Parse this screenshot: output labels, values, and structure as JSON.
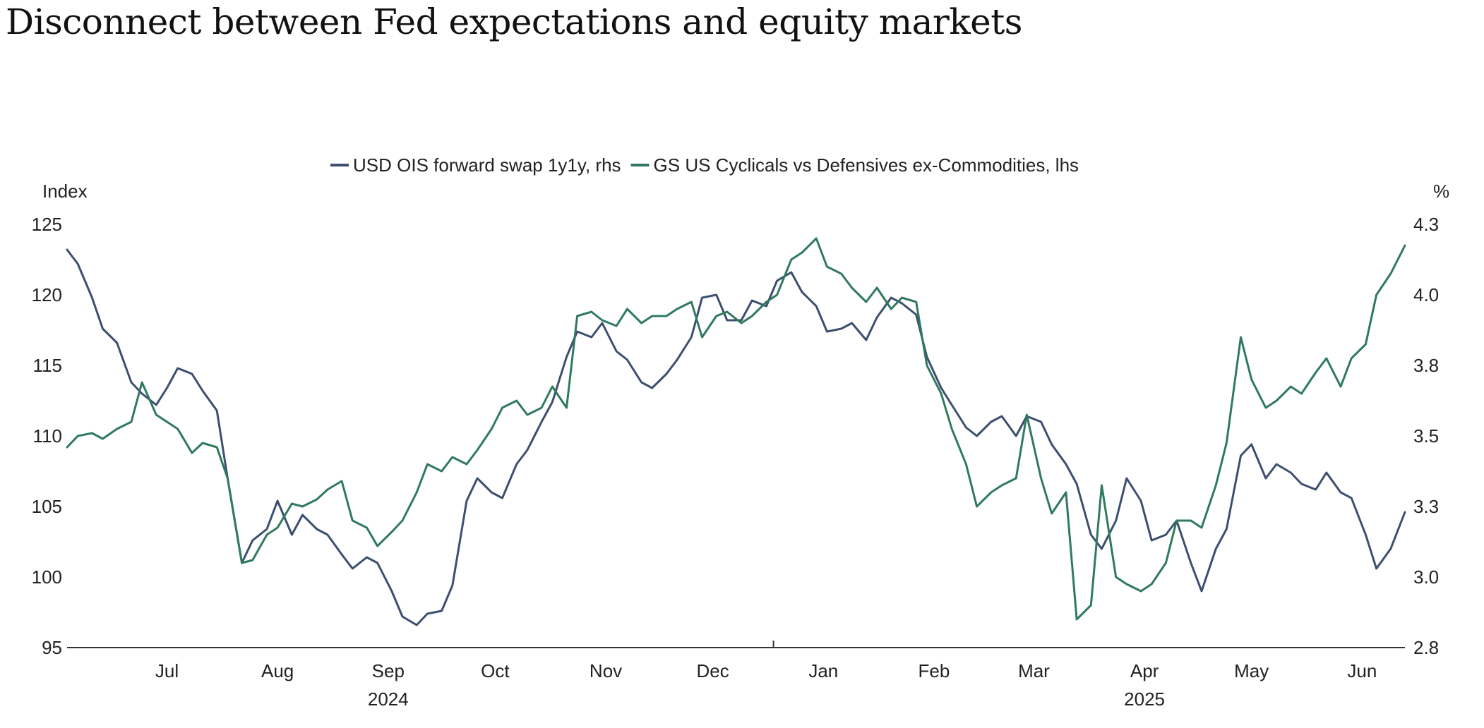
{
  "title": "Disconnect between Fed expectations and equity markets",
  "chart_data": {
    "type": "line",
    "title": "Disconnect between Fed expectations and equity markets",
    "left_axis": {
      "label": "Index",
      "ticks": [
        95,
        100,
        105,
        110,
        115,
        120,
        125
      ],
      "range": [
        95,
        125
      ]
    },
    "right_axis": {
      "label": "%",
      "ticks": [
        "2.8",
        "3.0",
        "3.3",
        "3.5",
        "3.8",
        "4.0",
        "4.3"
      ],
      "range": [
        2.8,
        4.3
      ]
    },
    "x_axis": {
      "months": [
        "Jul",
        "Aug",
        "Sep",
        "Oct",
        "Nov",
        "Dec",
        "Jan",
        "Feb",
        "Mar",
        "Apr",
        "May",
        "Jun"
      ],
      "years": [
        {
          "label": "2024",
          "under": "Sep"
        },
        {
          "label": "2025",
          "under": "Apr"
        }
      ],
      "range": [
        "2024-06-17",
        "2025-06-27"
      ]
    },
    "legend_position": "top-center",
    "grid": false,
    "series": [
      {
        "name": "USD OIS forward swap 1y1y, rhs",
        "axis": "right",
        "color": "#3d4f6f",
        "points": [
          [
            "2024-06-17",
            4.21
          ],
          [
            "2024-06-20",
            4.16
          ],
          [
            "2024-06-24",
            4.04
          ],
          [
            "2024-06-27",
            3.93
          ],
          [
            "2024-07-01",
            3.88
          ],
          [
            "2024-07-05",
            3.74
          ],
          [
            "2024-07-08",
            3.7
          ],
          [
            "2024-07-12",
            3.66
          ],
          [
            "2024-07-15",
            3.72
          ],
          [
            "2024-07-18",
            3.79
          ],
          [
            "2024-07-22",
            3.77
          ],
          [
            "2024-07-25",
            3.71
          ],
          [
            "2024-07-29",
            3.64
          ],
          [
            "2024-08-01",
            3.4
          ],
          [
            "2024-08-05",
            3.1
          ],
          [
            "2024-08-08",
            3.18
          ],
          [
            "2024-08-12",
            3.22
          ],
          [
            "2024-08-15",
            3.32
          ],
          [
            "2024-08-19",
            3.2
          ],
          [
            "2024-08-22",
            3.27
          ],
          [
            "2024-08-26",
            3.22
          ],
          [
            "2024-08-29",
            3.2
          ],
          [
            "2024-09-02",
            3.13
          ],
          [
            "2024-09-05",
            3.08
          ],
          [
            "2024-09-09",
            3.12
          ],
          [
            "2024-09-12",
            3.1
          ],
          [
            "2024-09-16",
            3.0
          ],
          [
            "2024-09-19",
            2.91
          ],
          [
            "2024-09-23",
            2.88
          ],
          [
            "2024-09-26",
            2.92
          ],
          [
            "2024-09-30",
            2.93
          ],
          [
            "2024-10-03",
            3.02
          ],
          [
            "2024-10-07",
            3.32
          ],
          [
            "2024-10-10",
            3.4
          ],
          [
            "2024-10-14",
            3.35
          ],
          [
            "2024-10-17",
            3.33
          ],
          [
            "2024-10-21",
            3.45
          ],
          [
            "2024-10-24",
            3.5
          ],
          [
            "2024-10-28",
            3.6
          ],
          [
            "2024-10-31",
            3.67
          ],
          [
            "2024-11-04",
            3.83
          ],
          [
            "2024-11-07",
            3.92
          ],
          [
            "2024-11-11",
            3.9
          ],
          [
            "2024-11-14",
            3.95
          ],
          [
            "2024-11-18",
            3.85
          ],
          [
            "2024-11-21",
            3.82
          ],
          [
            "2024-11-25",
            3.74
          ],
          [
            "2024-11-28",
            3.72
          ],
          [
            "2024-12-02",
            3.77
          ],
          [
            "2024-12-05",
            3.82
          ],
          [
            "2024-12-09",
            3.9
          ],
          [
            "2024-12-12",
            4.04
          ],
          [
            "2024-12-16",
            4.05
          ],
          [
            "2024-12-19",
            3.96
          ],
          [
            "2024-12-23",
            3.96
          ],
          [
            "2024-12-26",
            4.03
          ],
          [
            "2024-12-30",
            4.01
          ],
          [
            "2025-01-02",
            4.1
          ],
          [
            "2025-01-06",
            4.13
          ],
          [
            "2025-01-09",
            4.06
          ],
          [
            "2025-01-13",
            4.01
          ],
          [
            "2025-01-16",
            3.92
          ],
          [
            "2025-01-20",
            3.93
          ],
          [
            "2025-01-23",
            3.95
          ],
          [
            "2025-01-27",
            3.89
          ],
          [
            "2025-01-30",
            3.97
          ],
          [
            "2025-02-03",
            4.04
          ],
          [
            "2025-02-06",
            4.02
          ],
          [
            "2025-02-10",
            3.98
          ],
          [
            "2025-02-13",
            3.83
          ],
          [
            "2025-02-17",
            3.72
          ],
          [
            "2025-02-20",
            3.66
          ],
          [
            "2025-02-24",
            3.58
          ],
          [
            "2025-02-27",
            3.55
          ],
          [
            "2025-03-03",
            3.6
          ],
          [
            "2025-03-06",
            3.62
          ],
          [
            "2025-03-10",
            3.55
          ],
          [
            "2025-03-13",
            3.62
          ],
          [
            "2025-03-17",
            3.6
          ],
          [
            "2025-03-20",
            3.52
          ],
          [
            "2025-03-24",
            3.45
          ],
          [
            "2025-03-27",
            3.38
          ],
          [
            "2025-03-31",
            3.2
          ],
          [
            "2025-04-03",
            3.15
          ],
          [
            "2025-04-07",
            3.25
          ],
          [
            "2025-04-10",
            3.4
          ],
          [
            "2025-04-14",
            3.32
          ],
          [
            "2025-04-17",
            3.18
          ],
          [
            "2025-04-21",
            3.2
          ],
          [
            "2025-04-24",
            3.25
          ],
          [
            "2025-04-28",
            3.1
          ],
          [
            "2025-05-01",
            3.0
          ],
          [
            "2025-05-05",
            3.15
          ],
          [
            "2025-05-08",
            3.22
          ],
          [
            "2025-05-12",
            3.48
          ],
          [
            "2025-05-15",
            3.52
          ],
          [
            "2025-05-19",
            3.4
          ],
          [
            "2025-05-22",
            3.45
          ],
          [
            "2025-05-26",
            3.42
          ],
          [
            "2025-05-29",
            3.38
          ],
          [
            "2025-06-02",
            3.36
          ],
          [
            "2025-06-05",
            3.42
          ],
          [
            "2025-06-09",
            3.35
          ],
          [
            "2025-06-12",
            3.33
          ],
          [
            "2025-06-16",
            3.2
          ],
          [
            "2025-06-19",
            3.08
          ],
          [
            "2025-06-23",
            3.15
          ],
          [
            "2025-06-27",
            3.28
          ]
        ]
      },
      {
        "name": "GS US Cyclicals vs Defensives ex-Commodities, lhs",
        "axis": "left",
        "color": "#2f7a5f",
        "points": [
          [
            "2024-06-17",
            109.2
          ],
          [
            "2024-06-20",
            110.0
          ],
          [
            "2024-06-24",
            110.2
          ],
          [
            "2024-06-27",
            109.8
          ],
          [
            "2024-07-01",
            110.5
          ],
          [
            "2024-07-05",
            111.0
          ],
          [
            "2024-07-08",
            113.8
          ],
          [
            "2024-07-12",
            111.5
          ],
          [
            "2024-07-15",
            111.0
          ],
          [
            "2024-07-18",
            110.5
          ],
          [
            "2024-07-22",
            108.8
          ],
          [
            "2024-07-25",
            109.5
          ],
          [
            "2024-07-29",
            109.2
          ],
          [
            "2024-08-01",
            107.0
          ],
          [
            "2024-08-05",
            101.0
          ],
          [
            "2024-08-08",
            101.2
          ],
          [
            "2024-08-12",
            103.0
          ],
          [
            "2024-08-15",
            103.5
          ],
          [
            "2024-08-19",
            105.2
          ],
          [
            "2024-08-22",
            105.0
          ],
          [
            "2024-08-26",
            105.5
          ],
          [
            "2024-08-29",
            106.2
          ],
          [
            "2024-09-02",
            106.8
          ],
          [
            "2024-09-05",
            104.0
          ],
          [
            "2024-09-09",
            103.5
          ],
          [
            "2024-09-12",
            102.2
          ],
          [
            "2024-09-16",
            103.2
          ],
          [
            "2024-09-19",
            104.0
          ],
          [
            "2024-09-23",
            106.0
          ],
          [
            "2024-09-26",
            108.0
          ],
          [
            "2024-09-30",
            107.5
          ],
          [
            "2024-10-03",
            108.5
          ],
          [
            "2024-10-07",
            108.0
          ],
          [
            "2024-10-10",
            109.0
          ],
          [
            "2024-10-14",
            110.5
          ],
          [
            "2024-10-17",
            112.0
          ],
          [
            "2024-10-21",
            112.5
          ],
          [
            "2024-10-24",
            111.5
          ],
          [
            "2024-10-28",
            112.0
          ],
          [
            "2024-10-31",
            113.5
          ],
          [
            "2024-11-04",
            112.0
          ],
          [
            "2024-11-07",
            118.5
          ],
          [
            "2024-11-11",
            118.8
          ],
          [
            "2024-11-14",
            118.2
          ],
          [
            "2024-11-18",
            117.8
          ],
          [
            "2024-11-21",
            119.0
          ],
          [
            "2024-11-25",
            118.0
          ],
          [
            "2024-11-28",
            118.5
          ],
          [
            "2024-12-02",
            118.5
          ],
          [
            "2024-12-05",
            119.0
          ],
          [
            "2024-12-09",
            119.5
          ],
          [
            "2024-12-12",
            117.0
          ],
          [
            "2024-12-16",
            118.5
          ],
          [
            "2024-12-19",
            118.8
          ],
          [
            "2024-12-23",
            118.0
          ],
          [
            "2024-12-26",
            118.5
          ],
          [
            "2024-12-30",
            119.5
          ],
          [
            "2025-01-02",
            120.0
          ],
          [
            "2025-01-06",
            122.5
          ],
          [
            "2025-01-09",
            123.0
          ],
          [
            "2025-01-13",
            124.0
          ],
          [
            "2025-01-16",
            122.0
          ],
          [
            "2025-01-20",
            121.5
          ],
          [
            "2025-01-23",
            120.5
          ],
          [
            "2025-01-27",
            119.5
          ],
          [
            "2025-01-30",
            120.5
          ],
          [
            "2025-02-03",
            119.0
          ],
          [
            "2025-02-06",
            119.8
          ],
          [
            "2025-02-10",
            119.5
          ],
          [
            "2025-02-13",
            115.0
          ],
          [
            "2025-02-17",
            113.0
          ],
          [
            "2025-02-20",
            110.5
          ],
          [
            "2025-02-24",
            108.0
          ],
          [
            "2025-02-27",
            105.0
          ],
          [
            "2025-03-03",
            106.0
          ],
          [
            "2025-03-06",
            106.5
          ],
          [
            "2025-03-10",
            107.0
          ],
          [
            "2025-03-13",
            111.5
          ],
          [
            "2025-03-17",
            107.0
          ],
          [
            "2025-03-20",
            104.5
          ],
          [
            "2025-03-24",
            106.0
          ],
          [
            "2025-03-27",
            97.0
          ],
          [
            "2025-03-31",
            98.0
          ],
          [
            "2025-04-03",
            106.5
          ],
          [
            "2025-04-07",
            100.0
          ],
          [
            "2025-04-10",
            99.5
          ],
          [
            "2025-04-14",
            99.0
          ],
          [
            "2025-04-17",
            99.5
          ],
          [
            "2025-04-21",
            101.0
          ],
          [
            "2025-04-24",
            104.0
          ],
          [
            "2025-04-28",
            104.0
          ],
          [
            "2025-05-01",
            103.5
          ],
          [
            "2025-05-05",
            106.5
          ],
          [
            "2025-05-08",
            109.5
          ],
          [
            "2025-05-12",
            117.0
          ],
          [
            "2025-05-15",
            114.0
          ],
          [
            "2025-05-19",
            112.0
          ],
          [
            "2025-05-22",
            112.5
          ],
          [
            "2025-05-26",
            113.5
          ],
          [
            "2025-05-29",
            113.0
          ],
          [
            "2025-06-02",
            114.5
          ],
          [
            "2025-06-05",
            115.5
          ],
          [
            "2025-06-09",
            113.5
          ],
          [
            "2025-06-12",
            115.5
          ],
          [
            "2025-06-16",
            116.5
          ],
          [
            "2025-06-19",
            120.0
          ],
          [
            "2025-06-23",
            121.5
          ],
          [
            "2025-06-27",
            123.5
          ]
        ]
      }
    ]
  }
}
